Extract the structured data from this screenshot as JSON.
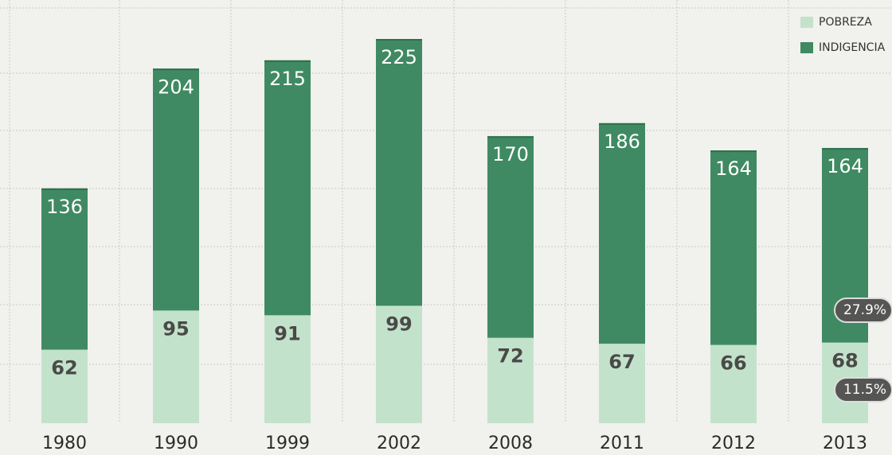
{
  "chart_data": {
    "type": "stacked-bar",
    "categories": [
      "1980",
      "1990",
      "1999",
      "2002",
      "2008",
      "2011",
      "2012",
      "2013"
    ],
    "series": [
      {
        "name": "POBREZA",
        "color": "#c3e2cc",
        "values": [
          62,
          95,
          91,
          99,
          72,
          67,
          66,
          68
        ]
      },
      {
        "name": "INDIGENCIA",
        "color": "#3f8a62",
        "values": [
          136,
          204,
          215,
          225,
          170,
          186,
          164,
          164
        ]
      }
    ],
    "legend": "top-right",
    "annotations": [
      "27.9%",
      "11.5%"
    ]
  }
}
